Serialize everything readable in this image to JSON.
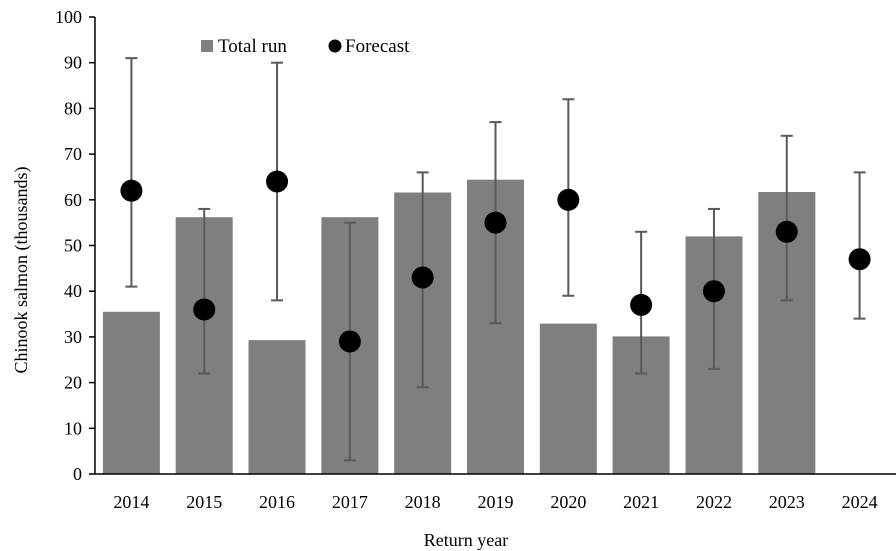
{
  "chart_data": {
    "type": "bar",
    "categories": [
      "2014",
      "2015",
      "2016",
      "2017",
      "2018",
      "2019",
      "2020",
      "2021",
      "2022",
      "2023",
      "2024"
    ],
    "series": [
      {
        "name": "Total run",
        "kind": "bar",
        "color": "#7f7f7f",
        "values": [
          35.5,
          56.2,
          29.3,
          56.2,
          61.6,
          64.4,
          32.9,
          30.1,
          52.0,
          61.7,
          null
        ]
      },
      {
        "name": "Forecast",
        "kind": "point",
        "color": "#000000",
        "values": [
          62,
          36,
          64,
          29,
          43,
          55,
          60,
          37,
          40,
          53,
          47
        ],
        "error_low": [
          41,
          22,
          38,
          3,
          19,
          33,
          39,
          22,
          23,
          38,
          34
        ],
        "error_high": [
          91,
          58,
          90,
          55,
          66,
          77,
          82,
          53,
          58,
          74,
          66
        ]
      }
    ],
    "xlabel": "Return year",
    "ylabel": "Chinook salmon (thousands)",
    "ylim": [
      0,
      100
    ],
    "yticks": [
      0,
      10,
      20,
      30,
      40,
      50,
      60,
      70,
      80,
      90,
      100
    ],
    "grid": false,
    "legend_position": "top-left"
  },
  "colors": {
    "axis": "#000000",
    "error_bar": "#595959"
  }
}
